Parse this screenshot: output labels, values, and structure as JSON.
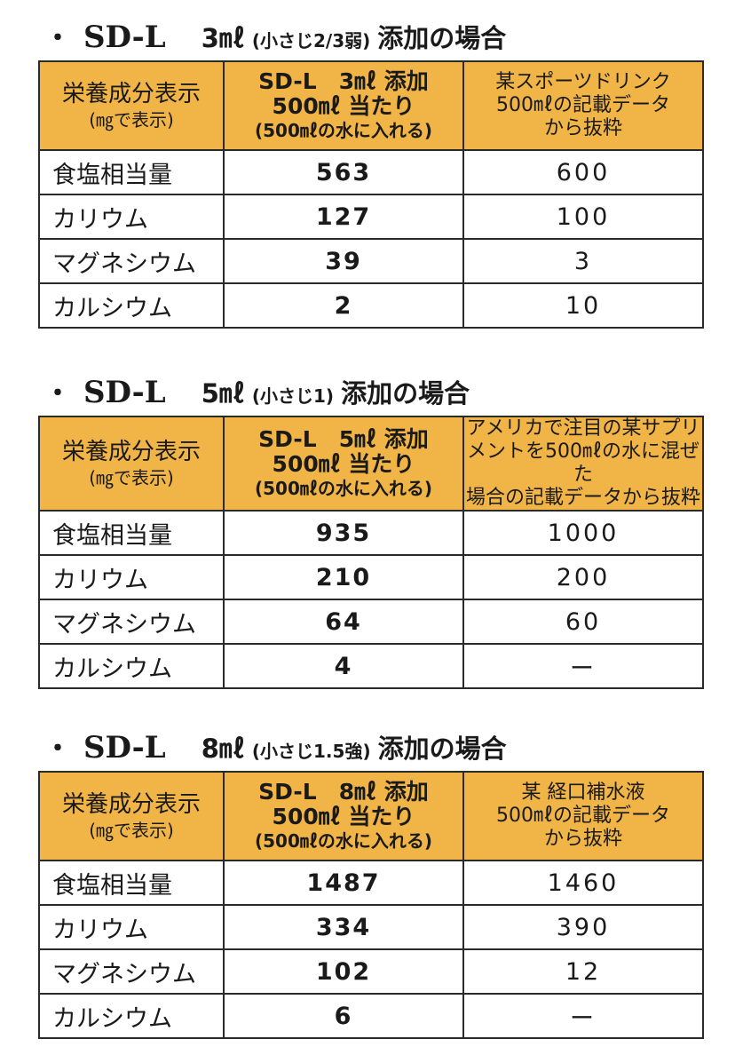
{
  "sections": [
    {
      "bullet": "・",
      "product": "SD-L",
      "amount": "3㎖",
      "paren": "(小さじ2/3弱)",
      "rest": "添加の場合",
      "header": {
        "col1_line1": "栄養成分表示",
        "col1_line2": "(㎎で表示)",
        "col2_line1": "SD-L　3㎖ 添加",
        "col2_line2": "500㎖ 当たり",
        "col2_line3": "(500㎖の水に入れる)",
        "col3_lines": [
          "某スポーツドリンク",
          "500㎖の記載データ",
          "から抜粋"
        ]
      },
      "rows": [
        {
          "label": "食塩相当量",
          "sdl": "563",
          "other": "600"
        },
        {
          "label": "カリウム",
          "sdl": "127",
          "other": "100"
        },
        {
          "label": "マグネシウム",
          "sdl": "39",
          "other": "3"
        },
        {
          "label": "カルシウム",
          "sdl": "2",
          "other": "10"
        }
      ]
    },
    {
      "bullet": "・",
      "product": "SD-L",
      "amount": "5㎖",
      "paren": "(小さじ1)",
      "rest": "添加の場合",
      "header": {
        "col1_line1": "栄養成分表示",
        "col1_line2": "(㎎で表示)",
        "col2_line1": "SD-L　5㎖ 添加",
        "col2_line2": "500㎖ 当たり",
        "col2_line3": "(500㎖の水に入れる)",
        "col3_lines": [
          "アメリカで注目の某サプリ",
          "メントを500㎖の水に混ぜた",
          "場合の記載データから抜粋"
        ]
      },
      "rows": [
        {
          "label": "食塩相当量",
          "sdl": "935",
          "other": "1000"
        },
        {
          "label": "カリウム",
          "sdl": "210",
          "other": "200"
        },
        {
          "label": "マグネシウム",
          "sdl": "64",
          "other": "60"
        },
        {
          "label": "カルシウム",
          "sdl": "4",
          "other": "ー"
        }
      ]
    },
    {
      "bullet": "・",
      "product": "SD-L",
      "amount": "8㎖",
      "paren": "(小さじ1.5強)",
      "rest": "添加の場合",
      "header": {
        "col1_line1": "栄養成分表示",
        "col1_line2": "(㎎で表示)",
        "col2_line1": "SD-L　8㎖ 添加",
        "col2_line2": "500㎖ 当たり",
        "col2_line3": "(500㎖の水に入れる)",
        "col3_lines": [
          "某 経口補水液",
          "500㎖の記載データ",
          "から抜粋"
        ]
      },
      "rows": [
        {
          "label": "食塩相当量",
          "sdl": "1487",
          "other": "1460"
        },
        {
          "label": "カリウム",
          "sdl": "334",
          "other": "390"
        },
        {
          "label": "マグネシウム",
          "sdl": "102",
          "other": "12"
        },
        {
          "label": "カルシウム",
          "sdl": "6",
          "other": "ー"
        }
      ]
    }
  ],
  "colors": {
    "header_bg": "#f1b447",
    "border": "#2a2a2a",
    "text": "#1a1a1a"
  }
}
